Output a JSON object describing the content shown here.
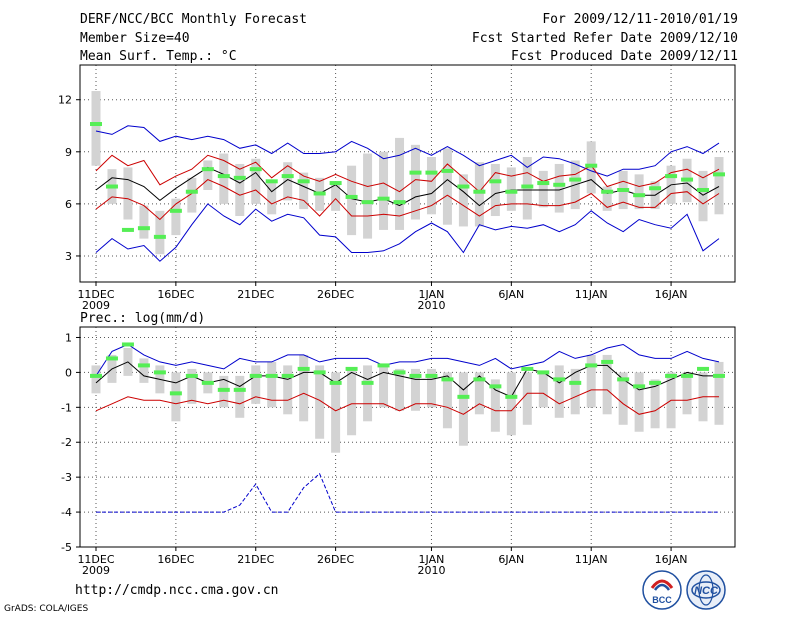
{
  "header": {
    "title": "DERF/NCC/BCC Monthly Forecast",
    "member_size": "Member Size=40",
    "variable": "Mean Surf. Temp.: °C",
    "period": "For 2009/12/11-2010/01/19",
    "started": "Fcst Started Refer Date 2009/12/10",
    "produced": "Fcst Produced Date 2009/12/11"
  },
  "footer": {
    "url": "http://cmdp.ncc.cma.gov.cn",
    "grads": "GrADS: COLA/IGES",
    "logo_bcc": "BCC",
    "logo_ncc": "NCC"
  },
  "colors": {
    "upper": "#0000cc",
    "lower_temp": "#cc0000",
    "mean": "#000000",
    "obs": "#55ee55",
    "box": "#d3d3d3"
  },
  "chart_data": [
    {
      "type": "line",
      "title": "Mean Surf. Temp.: °C",
      "ylim": [
        1.5,
        14
      ],
      "yticks": [
        3,
        6,
        9,
        12
      ],
      "x": [
        1,
        2,
        3,
        4,
        5,
        6,
        7,
        8,
        9,
        10,
        11,
        12,
        13,
        14,
        15,
        16,
        17,
        18,
        19,
        20,
        21,
        22,
        23,
        24,
        25,
        26,
        27,
        28,
        29,
        30,
        31,
        32,
        33,
        34,
        35,
        36,
        37,
        38,
        39,
        40
      ],
      "xtick_labels": [
        {
          "day": 1,
          "label": "11DEC",
          "year": "2009"
        },
        {
          "day": 6,
          "label": "16DEC"
        },
        {
          "day": 11,
          "label": "21DEC"
        },
        {
          "day": 16,
          "label": "26DEC"
        },
        {
          "day": 22,
          "label": "1JAN",
          "year": "2010"
        },
        {
          "day": 27,
          "label": "6JAN"
        },
        {
          "day": 32,
          "label": "11JAN"
        },
        {
          "day": 37,
          "label": "16JAN"
        }
      ],
      "series": [
        {
          "name": "max",
          "values": [
            10.2,
            10.0,
            10.5,
            10.4,
            9.6,
            9.9,
            9.7,
            9.9,
            9.7,
            9.2,
            9.4,
            8.9,
            9.5,
            8.9,
            8.9,
            9.0,
            9.6,
            9.2,
            8.6,
            8.8,
            9.2,
            8.8,
            9.3,
            8.8,
            8.2,
            8.5,
            8.8,
            8.1,
            8.7,
            8.6,
            8.3,
            7.9,
            7.6,
            8.0,
            8.0,
            8.2,
            9.0,
            9.3,
            8.9,
            9.5
          ]
        },
        {
          "name": "upper",
          "values": [
            7.9,
            8.8,
            8.2,
            8.5,
            7.1,
            7.6,
            8.0,
            8.8,
            8.5,
            8.0,
            8.4,
            7.5,
            8.2,
            7.6,
            7.3,
            7.7,
            7.3,
            7.0,
            7.2,
            6.7,
            7.4,
            7.3,
            8.3,
            7.5,
            6.7,
            7.8,
            7.6,
            7.8,
            7.3,
            7.6,
            7.7,
            8.2,
            7.0,
            7.3,
            7.0,
            7.2,
            7.8,
            8.0,
            7.5,
            8.0
          ]
        },
        {
          "name": "mean",
          "values": [
            6.8,
            7.5,
            7.4,
            7.0,
            6.2,
            6.9,
            7.5,
            8.1,
            7.7,
            7.2,
            7.8,
            6.7,
            7.4,
            7.0,
            6.6,
            7.1,
            6.3,
            6.1,
            6.3,
            5.9,
            6.4,
            6.6,
            7.4,
            6.7,
            5.9,
            6.6,
            6.8,
            6.8,
            6.8,
            6.8,
            7.1,
            7.4,
            6.6,
            6.8,
            6.5,
            6.5,
            7.1,
            7.2,
            6.5,
            7.0
          ]
        },
        {
          "name": "lower",
          "values": [
            5.7,
            6.4,
            6.3,
            5.9,
            5.1,
            6.0,
            6.6,
            7.4,
            7.0,
            6.5,
            6.8,
            6.0,
            6.4,
            6.2,
            5.3,
            6.3,
            5.3,
            5.3,
            5.4,
            5.3,
            5.6,
            5.9,
            6.5,
            5.9,
            5.3,
            5.9,
            6.0,
            6.0,
            5.9,
            5.9,
            6.1,
            6.6,
            5.8,
            6.1,
            5.8,
            5.8,
            6.6,
            6.7,
            6.0,
            6.6
          ]
        },
        {
          "name": "min",
          "values": [
            3.2,
            4.0,
            3.4,
            3.6,
            2.7,
            3.5,
            4.8,
            6.0,
            5.3,
            4.8,
            5.7,
            5.0,
            5.4,
            5.2,
            4.2,
            4.1,
            3.2,
            3.2,
            3.3,
            3.7,
            4.4,
            4.9,
            4.4,
            3.2,
            4.8,
            4.5,
            4.7,
            4.6,
            4.8,
            4.4,
            4.8,
            5.6,
            4.9,
            4.4,
            5.1,
            4.8,
            4.6,
            5.4,
            3.3,
            4.0
          ]
        }
      ],
      "boxes": [
        [
          8.2,
          12.5
        ],
        [
          6.0,
          8.0
        ],
        [
          5.1,
          8.1
        ],
        [
          4.0,
          5.9
        ],
        [
          3.1,
          5.6
        ],
        [
          4.2,
          6.3
        ],
        [
          5.5,
          7.5
        ],
        [
          6.8,
          8.5
        ],
        [
          6.0,
          8.9
        ],
        [
          5.3,
          8.3
        ],
        [
          6.0,
          8.6
        ],
        [
          5.4,
          7.4
        ],
        [
          6.2,
          8.4
        ],
        [
          5.7,
          7.8
        ],
        [
          5.6,
          7.5
        ],
        [
          5.6,
          7.3
        ],
        [
          4.2,
          8.2
        ],
        [
          4.0,
          8.9
        ],
        [
          4.5,
          9.0
        ],
        [
          4.5,
          9.8
        ],
        [
          5.1,
          9.4
        ],
        [
          5.4,
          8.7
        ],
        [
          4.8,
          9.2
        ],
        [
          4.7,
          7.7
        ],
        [
          4.7,
          8.4
        ],
        [
          5.3,
          8.3
        ],
        [
          5.6,
          8.1
        ],
        [
          5.1,
          8.7
        ],
        [
          5.8,
          7.9
        ],
        [
          5.5,
          8.3
        ],
        [
          5.7,
          8.5
        ],
        [
          6.6,
          9.6
        ],
        [
          5.6,
          7.0
        ],
        [
          5.7,
          7.9
        ],
        [
          5.7,
          7.7
        ],
        [
          5.7,
          7.3
        ],
        [
          6.0,
          8.2
        ],
        [
          6.1,
          8.6
        ],
        [
          5.0,
          7.9
        ],
        [
          5.4,
          8.7
        ]
      ],
      "obs": [
        10.6,
        7.0,
        4.5,
        4.6,
        4.1,
        5.6,
        6.7,
        8.0,
        7.6,
        7.5,
        8.0,
        7.3,
        7.6,
        7.3,
        6.6,
        7.2,
        6.4,
        6.1,
        6.3,
        6.1,
        7.8,
        7.8,
        7.9,
        7.0,
        6.7,
        7.3,
        6.7,
        7.0,
        7.2,
        7.1,
        7.4,
        8.2,
        6.7,
        6.8,
        6.5,
        6.9,
        7.6,
        7.4,
        6.8,
        7.7
      ]
    },
    {
      "type": "line",
      "title": "Prec.: log(mm/d)",
      "ylim": [
        -5,
        1.3
      ],
      "yticks": [
        1,
        0,
        -1,
        -2,
        -3,
        -4,
        -5
      ],
      "x": [
        1,
        2,
        3,
        4,
        5,
        6,
        7,
        8,
        9,
        10,
        11,
        12,
        13,
        14,
        15,
        16,
        17,
        18,
        19,
        20,
        21,
        22,
        23,
        24,
        25,
        26,
        27,
        28,
        29,
        30,
        31,
        32,
        33,
        34,
        35,
        36,
        37,
        38,
        39,
        40
      ],
      "xtick_labels": [
        {
          "day": 1,
          "label": "11DEC",
          "year": "2009"
        },
        {
          "day": 6,
          "label": "16DEC"
        },
        {
          "day": 11,
          "label": "21DEC"
        },
        {
          "day": 16,
          "label": "26DEC"
        },
        {
          "day": 22,
          "label": "1JAN",
          "year": "2010"
        },
        {
          "day": 27,
          "label": "6JAN"
        },
        {
          "day": 32,
          "label": "11JAN"
        },
        {
          "day": 37,
          "label": "16JAN"
        }
      ],
      "series": [
        {
          "name": "max",
          "values": [
            -0.1,
            0.6,
            0.8,
            0.5,
            0.3,
            0.2,
            0.3,
            0.2,
            0.1,
            0.4,
            0.3,
            0.3,
            0.5,
            0.5,
            0.3,
            0.4,
            0.4,
            0.4,
            0.2,
            0.3,
            0.3,
            0.4,
            0.4,
            0.3,
            0.2,
            0.4,
            0.1,
            0.2,
            0.3,
            0.6,
            0.4,
            0.5,
            0.7,
            0.8,
            0.5,
            0.4,
            0.4,
            0.6,
            0.4,
            0.3
          ]
        },
        {
          "name": "mean",
          "values": [
            -0.3,
            0.1,
            0.3,
            -0.1,
            -0.2,
            -0.3,
            -0.1,
            -0.3,
            -0.2,
            -0.4,
            -0.1,
            -0.1,
            -0.2,
            0.0,
            0.0,
            -0.3,
            0.0,
            -0.2,
            0.0,
            -0.1,
            -0.2,
            -0.2,
            -0.1,
            -0.5,
            -0.1,
            -0.5,
            -0.7,
            0.1,
            0.0,
            -0.3,
            0.0,
            0.2,
            0.2,
            -0.2,
            -0.5,
            -0.4,
            -0.2,
            0.0,
            -0.1,
            -0.1
          ]
        },
        {
          "name": "lower",
          "values": [
            -1.1,
            -0.9,
            -0.7,
            -0.8,
            -0.8,
            -0.9,
            -0.8,
            -0.9,
            -0.8,
            -0.9,
            -0.7,
            -0.8,
            -0.8,
            -0.6,
            -0.8,
            -1.1,
            -0.9,
            -0.9,
            -0.9,
            -1.1,
            -0.9,
            -0.9,
            -1.0,
            -1.2,
            -0.9,
            -1.1,
            -1.1,
            -0.6,
            -0.6,
            -0.9,
            -0.7,
            -0.5,
            -0.5,
            -0.9,
            -1.2,
            -1.1,
            -0.8,
            -0.8,
            -0.7,
            -0.7
          ]
        },
        {
          "name": "min",
          "values": [
            -4.0,
            -4.0,
            -4.0,
            -4.0,
            -4.0,
            -4.0,
            -4.0,
            -4.0,
            -4.0,
            -3.8,
            -3.2,
            -4.0,
            -4.0,
            -3.3,
            -2.9,
            -4.0,
            -4.0,
            -4.0,
            -4.0,
            -4.0,
            -4.0,
            -4.0,
            -4.0,
            -4.0,
            -4.0,
            -4.0,
            -4.0,
            -4.0,
            -4.0,
            -4.0,
            -4.0,
            -4.0,
            -4.0,
            -4.0,
            -4.0,
            -4.0,
            -4.0,
            -4.0,
            -4.0,
            -4.0
          ]
        }
      ],
      "boxes": [
        [
          -0.6,
          0.2
        ],
        [
          -0.3,
          0.5
        ],
        [
          -0.1,
          0.7
        ],
        [
          -0.3,
          0.4
        ],
        [
          -0.6,
          0.2
        ],
        [
          -1.4,
          0.0
        ],
        [
          -0.9,
          0.1
        ],
        [
          -0.6,
          0.0
        ],
        [
          -1.0,
          -0.1
        ],
        [
          -1.3,
          -0.1
        ],
        [
          -0.9,
          0.2
        ],
        [
          -1.0,
          0.3
        ],
        [
          -1.2,
          0.2
        ],
        [
          -1.4,
          0.5
        ],
        [
          -1.9,
          0.2
        ],
        [
          -2.3,
          0.0
        ],
        [
          -1.8,
          0.1
        ],
        [
          -1.4,
          0.2
        ],
        [
          -1.0,
          0.2
        ],
        [
          -1.1,
          0.1
        ],
        [
          -1.1,
          0.1
        ],
        [
          -1.0,
          0.1
        ],
        [
          -1.6,
          0.0
        ],
        [
          -2.1,
          0.0
        ],
        [
          -1.2,
          0.0
        ],
        [
          -1.7,
          -0.2
        ],
        [
          -1.8,
          0.0
        ],
        [
          -1.5,
          0.0
        ],
        [
          -1.0,
          0.0
        ],
        [
          -1.3,
          0.2
        ],
        [
          -1.2,
          0.1
        ],
        [
          -1.0,
          0.5
        ],
        [
          -1.2,
          0.5
        ],
        [
          -1.5,
          0.0
        ],
        [
          -1.7,
          0.0
        ],
        [
          -1.6,
          -0.2
        ],
        [
          -1.6,
          0.0
        ],
        [
          -1.2,
          0.0
        ],
        [
          -1.4,
          0.0
        ],
        [
          -1.5,
          0.3
        ]
      ],
      "obs": [
        -0.1,
        0.4,
        0.8,
        0.2,
        0.0,
        -0.6,
        -0.1,
        -0.3,
        -0.5,
        -0.5,
        -0.1,
        -0.1,
        -0.1,
        0.1,
        0.0,
        -0.3,
        0.1,
        -0.3,
        0.2,
        0.0,
        -0.1,
        -0.1,
        -0.2,
        -0.7,
        -0.2,
        -0.4,
        -0.7,
        0.1,
        0.0,
        -0.2,
        -0.3,
        0.2,
        0.3,
        -0.2,
        -0.4,
        -0.3,
        -0.1,
        -0.1,
        0.1,
        -0.1
      ]
    }
  ]
}
